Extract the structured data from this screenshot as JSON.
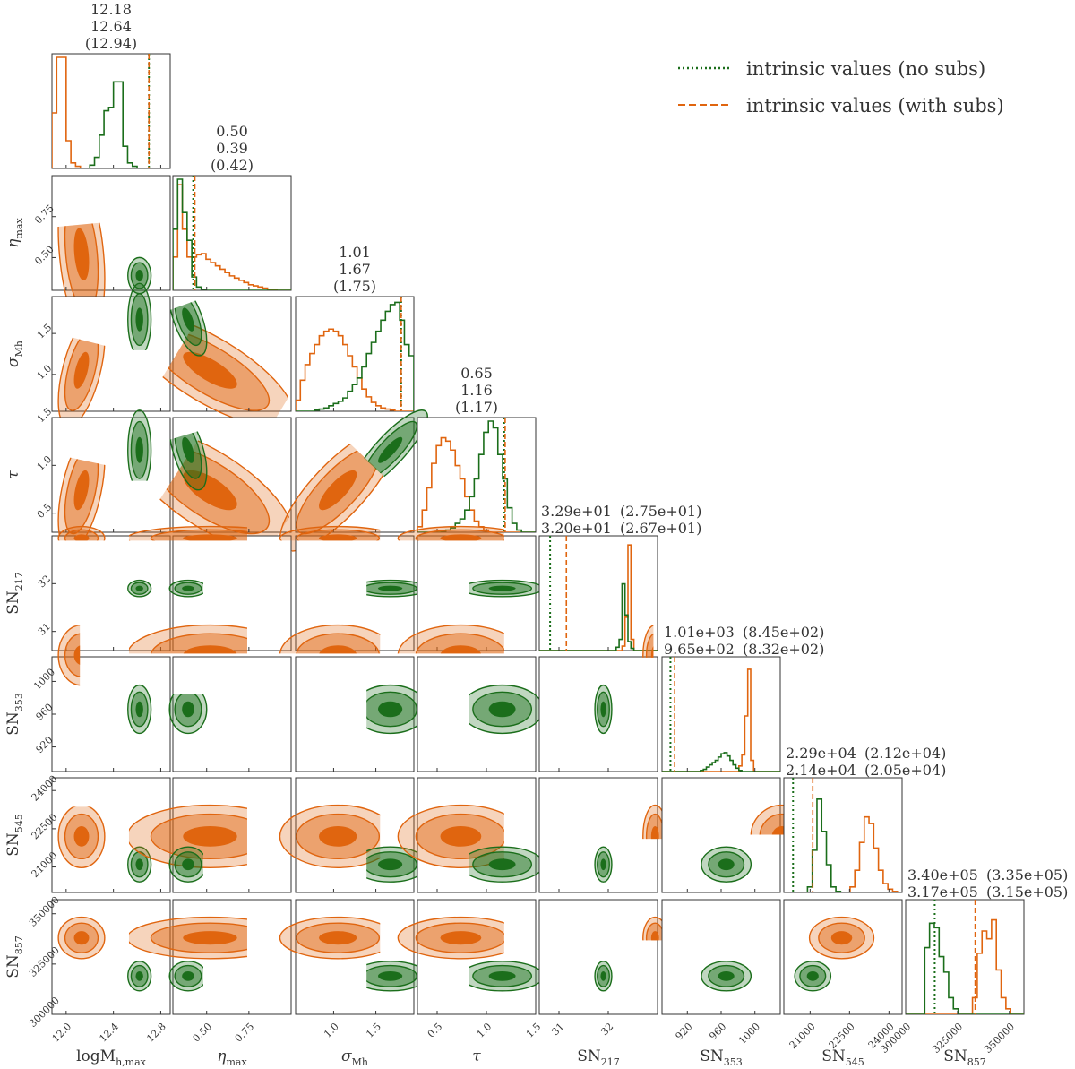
{
  "colors": {
    "no_subs": "#1b6e1b",
    "with_subs": "#e0650f",
    "intrinsic_text": "#333333",
    "axis": "#333333"
  },
  "legend": {
    "entries": [
      {
        "label": "intrinsic values (no subs)",
        "style": "dotted",
        "color": "#1b6e1b"
      },
      {
        "label": "intrinsic values (with subs)",
        "style": "dashed",
        "color": "#e0650f"
      }
    ]
  },
  "chart_data": {
    "type": "corner",
    "series": [
      {
        "name": "with subs",
        "color": "#e0650f"
      },
      {
        "name": "no subs",
        "color": "#1b6e1b"
      }
    ],
    "parameters": [
      {
        "key": "logMh",
        "label_html": "logM<tspan font-size='11' dy='5'>h,max</tspan>",
        "range": [
          11.88,
          12.88
        ],
        "ticks": [
          12.0,
          12.4,
          12.8
        ],
        "tick_labels": [
          "12.0",
          "12.4",
          "12.8"
        ],
        "title": {
          "layout": "stack",
          "with_subs": "12.18",
          "no_subs": "12.64",
          "intrinsic": "(12.94)"
        },
        "markers": {
          "no_subs": 12.7,
          "with_subs": 12.7
        },
        "hist": {
          "with_subs": {
            "start": 11.88,
            "step": 0.04,
            "values": [
              0.5,
              1.0,
              1.0,
              0.25,
              0.05,
              0.02,
              0,
              0,
              0,
              0,
              0,
              0,
              0,
              0,
              0,
              0,
              0,
              0,
              0,
              0,
              0,
              0,
              0,
              0,
              0
            ]
          },
          "no_subs": {
            "start": 11.88,
            "step": 0.04,
            "values": [
              0,
              0,
              0,
              0,
              0,
              0,
              0,
              0,
              0.03,
              0.1,
              0.3,
              0.52,
              0.55,
              0.78,
              0.78,
              0.2,
              0.05,
              0.02,
              0,
              0,
              0,
              0,
              0,
              0,
              0
            ]
          }
        }
      },
      {
        "key": "eta",
        "label_html": "<tspan font-style='italic'>η</tspan><tspan font-size='11' dy='5'>max</tspan>",
        "range": [
          0.3,
          1.0
        ],
        "ticks": [
          0.5,
          0.75
        ],
        "tick_labels": [
          "0.50",
          "0.75"
        ],
        "title": {
          "layout": "stack",
          "with_subs": "0.50",
          "no_subs": "0.39",
          "intrinsic": "(0.42)"
        },
        "markers": {
          "no_subs": 0.42,
          "with_subs": 0.43
        },
        "hist": {
          "with_subs": {
            "start": 0.3,
            "step": 0.028,
            "values": [
              0.3,
              0.95,
              0.55,
              0.3,
              0.3,
              0.32,
              0.33,
              0.28,
              0.25,
              0.22,
              0.19,
              0.16,
              0.13,
              0.11,
              0.09,
              0.07,
              0.05,
              0.04,
              0.03,
              0.02,
              0.01,
              0.01,
              0.0,
              0.0,
              0.0
            ]
          },
          "no_subs": {
            "start": 0.3,
            "step": 0.028,
            "values": [
              0.55,
              1.0,
              0.7,
              0.45,
              0.12,
              0.03,
              0.01,
              0,
              0,
              0,
              0,
              0,
              0,
              0,
              0,
              0,
              0,
              0,
              0,
              0,
              0,
              0,
              0,
              0,
              0
            ]
          }
        }
      },
      {
        "key": "sigma",
        "label_html": "<tspan font-style='italic'>σ</tspan><tspan font-size='11' dy='5'>Mh</tspan>",
        "range": [
          0.55,
          1.95
        ],
        "ticks": [
          1.0,
          1.5
        ],
        "tick_labels": [
          "1.0",
          "1.5"
        ],
        "title": {
          "layout": "stack",
          "with_subs": "1.01",
          "no_subs": "1.67",
          "intrinsic": "(1.75)"
        },
        "markers": {
          "no_subs": 1.8,
          "with_subs": 1.8
        },
        "hist": {
          "with_subs": {
            "start": 0.55,
            "step": 0.056,
            "values": [
              0.1,
              0.28,
              0.42,
              0.52,
              0.6,
              0.68,
              0.72,
              0.74,
              0.72,
              0.68,
              0.6,
              0.5,
              0.4,
              0.3,
              0.2,
              0.13,
              0.08,
              0.05,
              0.03,
              0.02,
              0.01,
              0.0,
              0.0,
              0.0,
              0.0
            ]
          },
          "no_subs": {
            "start": 0.55,
            "step": 0.056,
            "values": [
              0,
              0,
              0,
              0,
              0.01,
              0.02,
              0.03,
              0.05,
              0.07,
              0.09,
              0.12,
              0.18,
              0.24,
              0.3,
              0.4,
              0.52,
              0.62,
              0.72,
              0.82,
              0.9,
              0.96,
              0.98,
              0.82,
              0.6,
              0.5
            ]
          }
        }
      },
      {
        "key": "tau",
        "label_html": "<tspan font-style='italic'>τ</tspan>",
        "range": [
          0.3,
          1.5
        ],
        "ticks": [
          0.5,
          1.0,
          1.5
        ],
        "tick_labels": [
          "0.5",
          "1.0",
          "1.5"
        ],
        "title": {
          "layout": "stack",
          "with_subs": "0.65",
          "no_subs": "1.16",
          "intrinsic": "(1.17)"
        },
        "markers": {
          "no_subs": 1.18,
          "with_subs": 1.19
        },
        "hist": {
          "with_subs": {
            "start": 0.3,
            "step": 0.048,
            "values": [
              0.05,
              0.2,
              0.4,
              0.62,
              0.78,
              0.85,
              0.82,
              0.74,
              0.6,
              0.48,
              0.32,
              0.2,
              0.1,
              0.05,
              0.02,
              0.0,
              0.0,
              0.0,
              0.0,
              0.0,
              0.0,
              0.0,
              0.0,
              0.0,
              0.0
            ]
          },
          "no_subs": {
            "start": 0.3,
            "step": 0.048,
            "values": [
              0,
              0,
              0,
              0,
              0,
              0.01,
              0.02,
              0.04,
              0.08,
              0.12,
              0.2,
              0.32,
              0.48,
              0.7,
              0.9,
              1.0,
              0.94,
              0.7,
              0.48,
              0.22,
              0.08,
              0.02,
              0,
              0,
              0
            ]
          }
        }
      },
      {
        "key": "SN217",
        "label_html": "SN<tspan font-size='11' dy='5'>217</tspan>",
        "range": [
          30.6,
          33.0
        ],
        "ticks": [
          31,
          32
        ],
        "tick_labels": [
          "31",
          "32"
        ],
        "title": {
          "layout": "pair",
          "with_subs": "3.29e+01",
          "with_subs_intrinsic": "(2.75e+01)",
          "no_subs": "3.20e+01",
          "no_subs_intrinsic": "(2.67e+01)"
        },
        "markers": {
          "no_subs": 30.82,
          "with_subs": 31.15
        },
        "hist": {
          "with_subs": {
            "start": 30.6,
            "step": 0.06,
            "values": [
              0,
              0,
              0,
              0,
              0,
              0,
              0,
              0,
              0,
              0,
              0,
              0,
              0,
              0,
              0,
              0,
              0,
              0,
              0,
              0,
              0,
              0,
              0,
              0,
              0,
              0,
              0,
              0,
              0.04,
              0.3,
              0.95,
              0.1,
              0,
              0,
              0,
              0,
              0,
              0,
              0,
              0
            ]
          },
          "no_subs": {
            "start": 30.6,
            "step": 0.06,
            "values": [
              0,
              0,
              0,
              0,
              0,
              0,
              0,
              0,
              0,
              0,
              0,
              0,
              0,
              0,
              0,
              0,
              0,
              0,
              0,
              0,
              0,
              0,
              0,
              0,
              0,
              0,
              0.03,
              0.1,
              0.6,
              0.32,
              0.08,
              0.02,
              0,
              0,
              0,
              0,
              0,
              0,
              0,
              0
            ]
          }
        }
      },
      {
        "key": "SN353",
        "label_html": "SN<tspan font-size='11' dy='5'>353</tspan>",
        "range": [
          890,
          1030
        ],
        "ticks": [
          920,
          960,
          1000
        ],
        "tick_labels": [
          "920",
          "960",
          "1000"
        ],
        "title": {
          "layout": "pair",
          "with_subs": "1.01e+03",
          "with_subs_intrinsic": "(8.45e+02)",
          "no_subs": "9.65e+02",
          "no_subs_intrinsic": "(8.32e+02)"
        },
        "markers": {
          "no_subs": 900,
          "with_subs": 905
        },
        "hist": {
          "with_subs": {
            "start": 890,
            "step": 3.5,
            "values": [
              0,
              0,
              0,
              0,
              0,
              0,
              0,
              0,
              0,
              0,
              0,
              0,
              0,
              0,
              0,
              0,
              0,
              0,
              0,
              0,
              0,
              0,
              0,
              0,
              0,
              0,
              0.05,
              0.15,
              0.5,
              0.92,
              0.1,
              0,
              0,
              0,
              0,
              0,
              0,
              0,
              0,
              0
            ]
          },
          "no_subs": {
            "start": 890,
            "step": 3.5,
            "values": [
              0,
              0,
              0,
              0,
              0,
              0,
              0,
              0,
              0,
              0,
              0,
              0,
              0,
              0.01,
              0.02,
              0.04,
              0.06,
              0.08,
              0.1,
              0.13,
              0.16,
              0.17,
              0.14,
              0.1,
              0.06,
              0.03,
              0.01,
              0,
              0,
              0,
              0,
              0,
              0,
              0,
              0,
              0,
              0,
              0,
              0,
              0
            ]
          }
        }
      },
      {
        "key": "SN545",
        "label_html": "SN<tspan font-size='11' dy='5'>545</tspan>",
        "range": [
          20000,
          24500
        ],
        "ticks": [
          21000,
          22500,
          24000
        ],
        "tick_labels": [
          "21000",
          "22500",
          "24000"
        ],
        "title": {
          "layout": "pair",
          "with_subs": "2.29e+04",
          "with_subs_intrinsic": "(2.12e+04)",
          "no_subs": "2.14e+04",
          "no_subs_intrinsic": "(2.05e+04)"
        },
        "markers": {
          "no_subs": 20350,
          "with_subs": 21100
        },
        "hist": {
          "with_subs": {
            "start": 20000,
            "step": 180,
            "values": [
              0,
              0,
              0,
              0,
              0,
              0,
              0,
              0,
              0,
              0,
              0,
              0,
              0,
              0,
              0.05,
              0.2,
              0.45,
              0.68,
              0.62,
              0.4,
              0.2,
              0.08,
              0.03,
              0.01,
              0.0
            ]
          },
          "no_subs": {
            "start": 20000,
            "step": 180,
            "values": [
              0,
              0,
              0,
              0,
              0,
              0.05,
              0.38,
              0.84,
              0.55,
              0.25,
              0.05,
              0.01,
              0,
              0,
              0,
              0,
              0,
              0,
              0,
              0,
              0,
              0,
              0,
              0,
              0
            ]
          }
        }
      },
      {
        "key": "SN857",
        "label_html": "SN<tspan font-size='11' dy='5'>857</tspan>",
        "range": [
          300000,
          357000
        ],
        "ticks": [
          300000,
          325000,
          350000
        ],
        "tick_labels": [
          "300000",
          "325000",
          "350000"
        ],
        "title": {
          "layout": "pair",
          "with_subs": "3.40e+05",
          "with_subs_intrinsic": "(3.35e+05)",
          "no_subs": "3.17e+05",
          "no_subs_intrinsic": "(3.15e+05)"
        },
        "markers": {
          "no_subs": 314000,
          "with_subs": 333500
        },
        "hist": {
          "with_subs": {
            "start": 300000,
            "step": 2300,
            "values": [
              0,
              0,
              0,
              0,
              0,
              0,
              0,
              0,
              0,
              0,
              0,
              0,
              0,
              0,
              0.15,
              0.55,
              0.75,
              0.68,
              0.85,
              0.4,
              0.15,
              0.05,
              0.0,
              0.0,
              0.0
            ]
          },
          "no_subs": {
            "start": 300000,
            "step": 2300,
            "values": [
              0,
              0,
              0,
              0,
              0.6,
              0.82,
              0.78,
              0.52,
              0.38,
              0.15,
              0.05,
              0,
              0,
              0,
              0,
              0,
              0,
              0,
              0,
              0,
              0,
              0,
              0,
              0,
              0
            ]
          }
        }
      }
    ],
    "posterior_2d": {
      "with_subs": {
        "mean": [
          12.13,
          0.52,
          1.05,
          0.74,
          32.95,
          1032,
          22200,
          338000
        ],
        "std": [
          0.08,
          0.2,
          0.28,
          0.26,
          0.1,
          15,
          500,
          4200
        ],
        "corr": {
          "0-1": -0.3,
          "0-2": 0.55,
          "0-3": 0.5,
          "1-2": -0.75,
          "1-3": -0.7,
          "2-3": 0.8
        }
      },
      "no_subs": {
        "mean": [
          12.62,
          0.39,
          1.67,
          1.16,
          31.9,
          966,
          21100,
          319000
        ],
        "std": [
          0.04,
          0.045,
          0.18,
          0.17,
          0.07,
          12,
          280,
          3000
        ],
        "corr": {
          "0-1": 0.0,
          "0-2": 0.0,
          "0-3": 0.0,
          "1-2": -0.6,
          "1-3": -0.55,
          "2-3": 0.85
        }
      }
    }
  }
}
